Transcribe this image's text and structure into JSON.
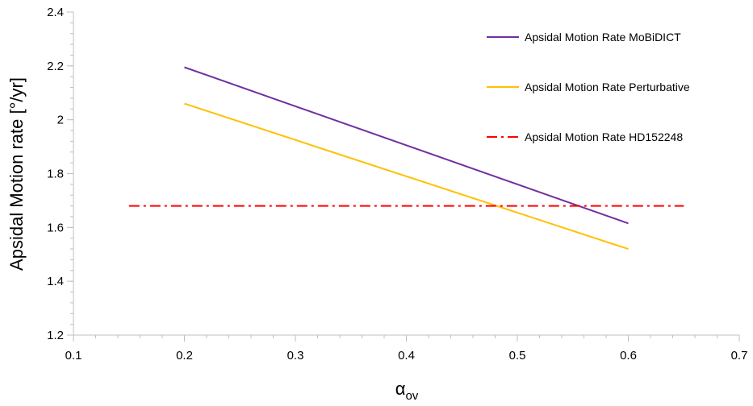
{
  "chart_data": {
    "type": "line",
    "xlabel_main": "α",
    "xlabel_sub": "ov",
    "ylabel": "Apsidal Motion rate [°/yr]",
    "xlim": [
      0.1,
      0.7
    ],
    "ylim": [
      1.2,
      2.4
    ],
    "x_ticks": [
      "0.1",
      "0.2",
      "0.3",
      "0.4",
      "0.5",
      "0.6",
      "0.7"
    ],
    "y_ticks": [
      "1.2",
      "1.4",
      "1.6",
      "1.8",
      "2",
      "2.2",
      "2.4"
    ],
    "grid": false,
    "legend_position": "top-right",
    "series": [
      {
        "name": "Apsidal Motion Rate MoBiDICT",
        "color": "#7030A0",
        "dash": "solid",
        "x": [
          0.2,
          0.6
        ],
        "y": [
          2.195,
          1.615
        ]
      },
      {
        "name": "Apsidal Motion Rate Perturbative",
        "color": "#FFC000",
        "dash": "solid",
        "x": [
          0.2,
          0.6
        ],
        "y": [
          2.06,
          1.52
        ]
      },
      {
        "name": "Apsidal Motion Rate HD152248",
        "color": "#FF0000",
        "dash": "dashdot",
        "x": [
          0.15,
          0.65
        ],
        "y": [
          1.68,
          1.68
        ]
      }
    ]
  }
}
